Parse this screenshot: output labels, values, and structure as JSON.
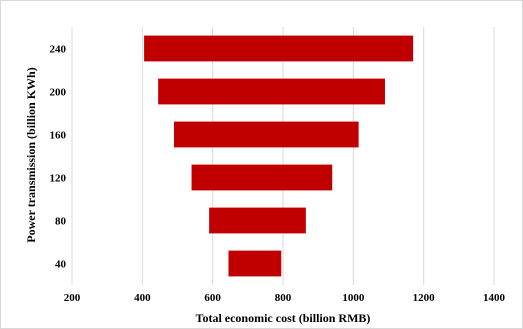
{
  "chart_data": {
    "type": "bar",
    "orientation": "horizontal",
    "floating": true,
    "xlabel": "Total economic cost (billion RMB)",
    "ylabel": "Power transmission (billion KWh)",
    "xlim": [
      200,
      1400
    ],
    "xticks": [
      200,
      400,
      600,
      800,
      1000,
      1200,
      1400
    ],
    "categories": [
      "40",
      "80",
      "120",
      "160",
      "200",
      "240"
    ],
    "series": [
      {
        "color": "#c00000",
        "start": [
          645,
          590,
          540,
          490,
          445,
          405
        ],
        "end": [
          795,
          865,
          940,
          1015,
          1090,
          1170
        ]
      }
    ],
    "grid": "vertical"
  }
}
